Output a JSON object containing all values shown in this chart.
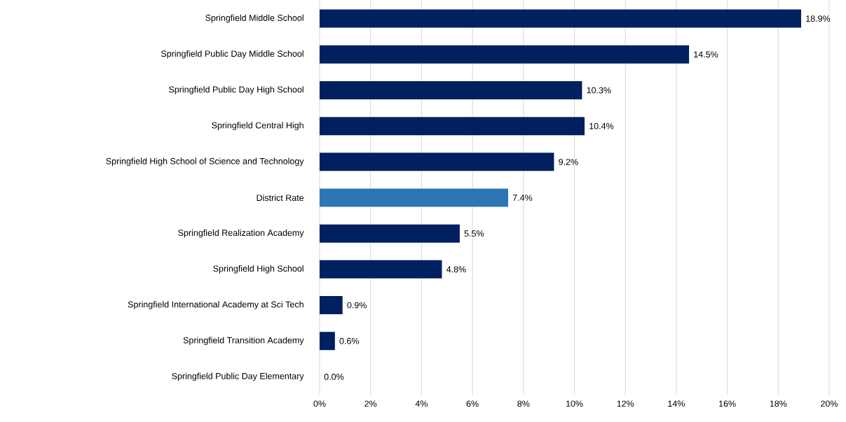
{
  "chart_data": {
    "type": "bar",
    "orientation": "horizontal",
    "categories": [
      "Springfield Middle School",
      "Springfield Public Day Middle School",
      "Springfield Public Day High School",
      "Springfield Central High",
      "Springfield High School of Science and Technology",
      "District Rate",
      "Springfield Realization Academy",
      "Springfield High School",
      "Springfield International Academy at Sci Tech",
      "Springfield Transition Academy",
      "Springfield Public Day Elementary"
    ],
    "values": [
      18.9,
      14.5,
      10.3,
      10.4,
      9.2,
      7.4,
      5.5,
      4.8,
      0.9,
      0.6,
      0.0
    ],
    "colors": [
      "#002060",
      "#002060",
      "#002060",
      "#002060",
      "#002060",
      "#2e75b6",
      "#002060",
      "#002060",
      "#002060",
      "#002060",
      "#002060"
    ],
    "value_labels": [
      "18.9%",
      "14.5%",
      "10.3%",
      "10.4%",
      "9.2%",
      "7.4%",
      "5.5%",
      "4.8%",
      "0.9%",
      "0.6%",
      "0.0%"
    ],
    "xlim": [
      0,
      20
    ],
    "xticks": [
      {
        "value": 0,
        "label": "0%"
      },
      {
        "value": 2,
        "label": "2%"
      },
      {
        "value": 4,
        "label": "4%"
      },
      {
        "value": 6,
        "label": "6%"
      },
      {
        "value": 8,
        "label": "8%"
      },
      {
        "value": 10,
        "label": "10%"
      },
      {
        "value": 12,
        "label": "12%"
      },
      {
        "value": 14,
        "label": "14%"
      },
      {
        "value": 16,
        "label": "16%"
      },
      {
        "value": 18,
        "label": "18%"
      },
      {
        "value": 20,
        "label": "20%"
      }
    ],
    "grid": "x"
  }
}
